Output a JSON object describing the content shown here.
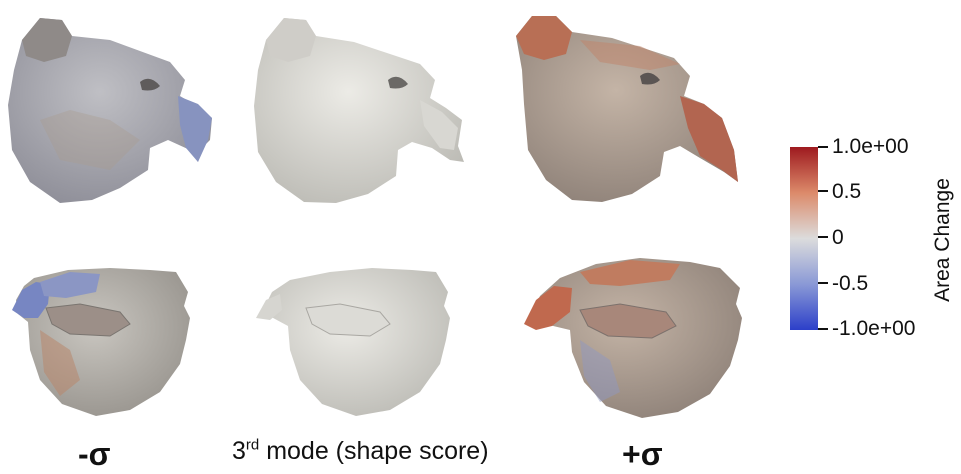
{
  "figure": {
    "columns": {
      "left": "-σ",
      "middle_prefix": "3",
      "middle_sup": "rd",
      "middle_suffix": " mode (shape score)",
      "right": "+σ"
    },
    "colorbar": {
      "title": "Area Change",
      "ticks": [
        "1.0e+00",
        "0.5",
        "0",
        "-0.5",
        "-1.0e+00"
      ],
      "colors": {
        "max": "#b2182b",
        "mid": "#dcdcdc",
        "min": "#2c3fc9"
      }
    },
    "meshes": [
      {
        "row": "top",
        "column": "-σ",
        "tint": "cool-blue"
      },
      {
        "row": "top",
        "column": "mean",
        "tint": "neutral"
      },
      {
        "row": "top",
        "column": "+σ",
        "tint": "warm-red"
      },
      {
        "row": "bottom",
        "column": "-σ",
        "tint": "cool-blue"
      },
      {
        "row": "bottom",
        "column": "mean",
        "tint": "neutral"
      },
      {
        "row": "bottom",
        "column": "+σ",
        "tint": "warm-red"
      }
    ]
  }
}
